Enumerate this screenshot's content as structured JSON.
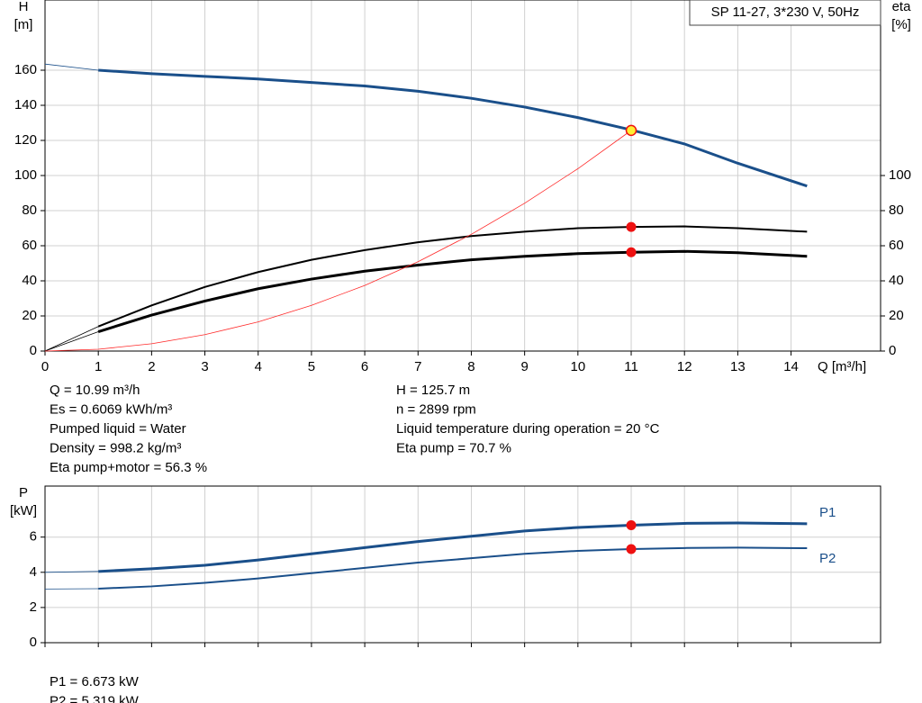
{
  "chart_data": [
    {
      "type": "line",
      "title": "SP 11-27, 3*230 V, 50Hz",
      "ylabel": [
        "H",
        "[m]"
      ],
      "y2label": [
        "eta",
        "[%]"
      ],
      "xlabel": "Q [m³/h]",
      "xlim": [
        0,
        15.68
      ],
      "xticks": [
        0,
        1,
        2,
        3,
        4,
        5,
        6,
        7,
        8,
        9,
        10,
        11,
        12,
        13,
        14
      ],
      "ylim": [
        0,
        200
      ],
      "yticks": [
        0,
        20,
        40,
        60,
        80,
        100,
        120,
        140,
        160
      ],
      "y2lim": [
        0,
        200
      ],
      "y2ticks": [
        0,
        20,
        40,
        60,
        80,
        100
      ],
      "grid": true,
      "series": [
        {
          "color": "#1a4f8a",
          "style": "thin",
          "x": [
            0,
            1
          ],
          "values": [
            163.5,
            160
          ]
        },
        {
          "color": "#1a4f8a",
          "style": "thick",
          "x": [
            1,
            2,
            3,
            4,
            5,
            6,
            7,
            8,
            9,
            10,
            11,
            12,
            13,
            14.3
          ],
          "values": [
            160,
            158,
            156.5,
            155,
            153,
            151,
            148,
            144,
            139,
            133,
            126,
            118,
            107,
            94
          ]
        },
        {
          "color": "#000000",
          "style": "thin",
          "axis": "y2",
          "x": [
            0,
            1
          ],
          "values": [
            0,
            14
          ]
        },
        {
          "color": "#000000",
          "style": "medium",
          "axis": "y2",
          "x": [
            1,
            2,
            3,
            4,
            5,
            6,
            7,
            8,
            9,
            10,
            11,
            12,
            13,
            14.3
          ],
          "values": [
            14,
            26,
            36.5,
            45,
            52,
            57.5,
            62,
            65.5,
            68,
            70,
            70.7,
            71,
            70,
            68
          ]
        },
        {
          "color": "#000000",
          "style": "thin",
          "axis": "y2",
          "x": [
            0,
            1
          ],
          "values": [
            0,
            11
          ]
        },
        {
          "color": "#000000",
          "style": "thick",
          "axis": "y2",
          "x": [
            1,
            2,
            3,
            4,
            5,
            6,
            7,
            8,
            9,
            10,
            11,
            12,
            13,
            14.3
          ],
          "values": [
            11,
            20.5,
            28.5,
            35.5,
            41,
            45.5,
            49,
            52,
            54,
            55.5,
            56.3,
            56.8,
            56,
            54
          ]
        },
        {
          "color": "#ff2a2a",
          "style": "thin",
          "x": [
            0,
            1,
            2,
            3,
            4,
            5,
            6,
            7,
            8,
            9,
            10,
            11
          ],
          "values": [
            0,
            1.04,
            4.16,
            9.35,
            16.6,
            26,
            37.4,
            50.9,
            66.5,
            84.2,
            103.9,
            125.7
          ]
        }
      ],
      "points": [
        {
          "x": 11,
          "value": 125.7,
          "color": "#ffee33"
        },
        {
          "x": 11,
          "value": 70.7,
          "color": "#ee1111",
          "axis": "y2"
        },
        {
          "x": 11,
          "value": 56.3,
          "color": "#ee1111",
          "axis": "y2"
        }
      ],
      "annotations_left": [
        "Q = 10.99 m³/h",
        "Es = 0.6069 kWh/m³",
        "Pumped liquid = Water",
        "Density = 998.2 kg/m³",
        "Eta pump+motor = 56.3 %"
      ],
      "annotations_right": [
        "H = 125.7 m",
        "n = 2899 rpm",
        "Liquid temperature during operation = 20 °C",
        "Eta pump = 70.7 %"
      ]
    },
    {
      "type": "line",
      "ylabel": [
        "P",
        "[kW]"
      ],
      "xlim": [
        0,
        15.68
      ],
      "xticks": [
        0,
        1,
        2,
        3,
        4,
        5,
        6,
        7,
        8,
        9,
        10,
        11,
        12,
        13,
        14
      ],
      "ylim": [
        0,
        8.9
      ],
      "yticks": [
        0,
        2,
        4,
        6
      ],
      "grid": true,
      "series": [
        {
          "color": "#1a4f8a",
          "style": "thin",
          "x": [
            0,
            1
          ],
          "values": [
            4.0,
            4.05
          ]
        },
        {
          "name": "P1",
          "color": "#1a4f8a",
          "style": "thick",
          "x": [
            1,
            2,
            3,
            4,
            5,
            6,
            7,
            8,
            9,
            10,
            11,
            12,
            13,
            14.3
          ],
          "values": [
            4.05,
            4.2,
            4.4,
            4.7,
            5.05,
            5.4,
            5.75,
            6.05,
            6.35,
            6.55,
            6.673,
            6.78,
            6.8,
            6.76
          ]
        },
        {
          "color": "#1a4f8a",
          "style": "thin",
          "x": [
            0,
            1
          ],
          "values": [
            3.05,
            3.07
          ]
        },
        {
          "name": "P2",
          "color": "#1a4f8a",
          "style": "medium",
          "x": [
            1,
            2,
            3,
            4,
            5,
            6,
            7,
            8,
            9,
            10,
            11,
            12,
            13,
            14.3
          ],
          "values": [
            3.07,
            3.2,
            3.4,
            3.65,
            3.95,
            4.25,
            4.55,
            4.8,
            5.05,
            5.22,
            5.319,
            5.38,
            5.4,
            5.37
          ]
        }
      ],
      "points": [
        {
          "x": 11,
          "value": 6.673,
          "color": "#ee1111"
        },
        {
          "x": 11,
          "value": 5.319,
          "color": "#ee1111"
        }
      ],
      "annotations_left": [
        "P1 = 6.673 kW",
        "P2 = 5.319 kW"
      ]
    }
  ]
}
